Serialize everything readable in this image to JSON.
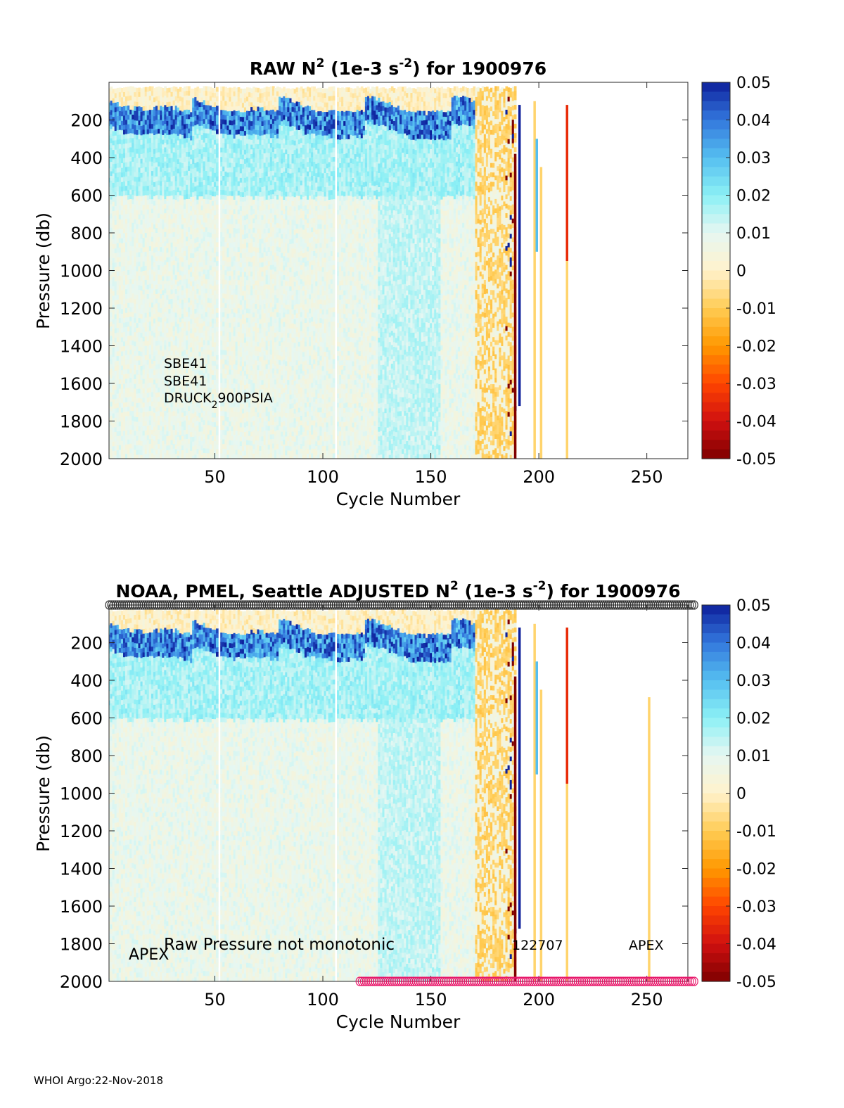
{
  "footer": "WHOI Argo:22-Nov-2018",
  "colorbar": {
    "ticks": [
      "0.05",
      "0.04",
      "0.03",
      "0.02",
      "0.01",
      "0",
      "-0.01",
      "-0.02",
      "-0.03",
      "-0.04",
      "-0.05"
    ],
    "range": [
      -0.05,
      0.05
    ],
    "colors": [
      "#7f0000",
      "#d01010",
      "#ff4500",
      "#ff9900",
      "#ffcc55",
      "#fff2cc",
      "#e6f7f2",
      "#8cf0f5",
      "#55bff0",
      "#3377dd",
      "#0d1f9b"
    ]
  },
  "chart_data": [
    {
      "type": "heatmap",
      "title_prefix": "RAW N",
      "title_sup1": "2",
      "title_mid": " (1e-3 s",
      "title_sup2": "-2",
      "title_suffix": ") for 1900976",
      "xlabel": "Cycle Number",
      "ylabel": "Pressure (db)",
      "xlim": [
        1,
        269
      ],
      "ylim": [
        0,
        2000
      ],
      "y_reversed": true,
      "xticks": [
        50,
        100,
        150,
        200,
        250
      ],
      "yticks": [
        200,
        400,
        600,
        800,
        1000,
        1200,
        1400,
        1600,
        1800,
        2000
      ],
      "annotations": [
        "SBE41",
        "SBE41",
        "DRUCK"
      ],
      "annotation_sub": "2",
      "annotation_tail": "900PSIA",
      "gap_cycles": [
        52,
        106
      ],
      "last_full_cycle": 189,
      "markers": []
    },
    {
      "type": "heatmap",
      "title_prefix": "NOAA, PMEL, Seattle  ADJUSTED N",
      "title_sup1": "2",
      "title_mid": " (1e-3 s",
      "title_sup2": "-2",
      "title_suffix": ") for 1900976",
      "xlabel": "Cycle Number",
      "ylabel": "Pressure (db)",
      "xlim": [
        1,
        269
      ],
      "ylim": [
        0,
        2000
      ],
      "y_reversed": true,
      "xticks": [
        50,
        100,
        150,
        200,
        250
      ],
      "yticks": [
        200,
        400,
        600,
        800,
        1000,
        1200,
        1400,
        1600,
        1800,
        2000
      ],
      "annotations": [
        "APEX",
        "Raw Pressure not monotonic",
        "122707",
        "APEX"
      ],
      "gap_cycles": [
        52,
        106
      ],
      "last_full_cycle": 189,
      "markers": [
        {
          "kind": "circle",
          "color": "#333333",
          "y": 0,
          "x_from": 1,
          "x_to": 272
        },
        {
          "kind": "circle",
          "color": "#e8196b",
          "y": 2000,
          "x_from": 117,
          "x_to": 272
        }
      ]
    }
  ]
}
